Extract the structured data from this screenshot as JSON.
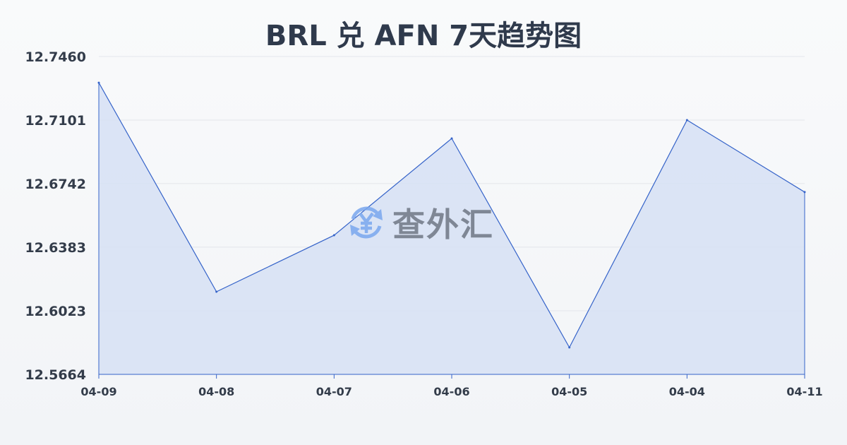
{
  "chart_data": {
    "type": "area",
    "title": "BRL 兑 AFN 7天趋势图",
    "categories": [
      "04-09",
      "04-08",
      "04-07",
      "04-06",
      "04-05",
      "04-04",
      "04-11"
    ],
    "values": [
      12.7312,
      12.6131,
      12.645,
      12.6997,
      12.5816,
      12.7101,
      12.6694
    ],
    "y_ticks": [
      "12.7460",
      "12.7101",
      "12.6742",
      "12.6383",
      "12.6023",
      "12.5664"
    ],
    "ylim": [
      12.5664,
      12.746
    ],
    "grid": true,
    "colors": {
      "line": "#3563c9",
      "fill": "#d6e0f5"
    }
  },
  "watermark": {
    "text": "查外汇",
    "icon": "yen-exchange-icon"
  }
}
